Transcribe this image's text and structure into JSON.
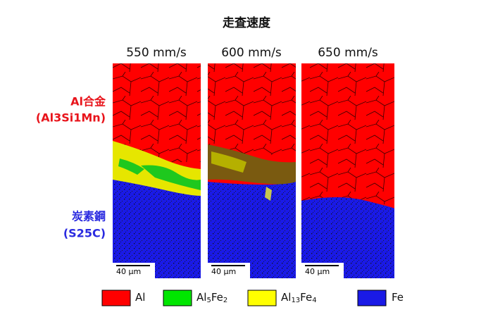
{
  "title": "走査速度",
  "columns": [
    "550 mm/s",
    "600 mm/s",
    "650 mm/s"
  ],
  "rows": [
    {
      "name": "Al合金",
      "detail": "(Al3Si1Mn)"
    },
    {
      "name": "炭素鋼",
      "detail": "(S25C)"
    }
  ],
  "scale_bar": "40 μm",
  "legend": [
    {
      "parts": [
        "Al"
      ]
    },
    {
      "parts": [
        "Al",
        "5",
        "Fe",
        "2"
      ]
    },
    {
      "parts": [
        "Al",
        "13",
        "Fe",
        "4"
      ]
    },
    {
      "parts": [
        "Fe"
      ]
    }
  ]
}
